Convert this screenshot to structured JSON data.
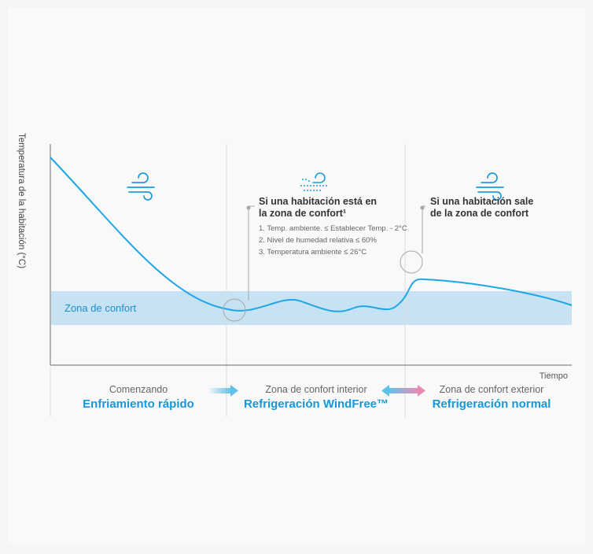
{
  "y_axis_label": "Temperatura de la habitación (°C)",
  "x_axis_label": "Tiempo",
  "comfort_zone_label": "Zona de confort",
  "annotation_1": {
    "title_line1": "Si una habitación está en",
    "title_line2": "la zona de confort¹",
    "conditions": [
      "1. Temp. ambiente. ≤ Establecer Temp. - 2°C",
      "2. Nivel de humedad relativa ≤ 60%",
      "3. Temperatura ambiente ≤ 26°C"
    ]
  },
  "annotation_2": {
    "title_line1": "Si una habitación sale",
    "title_line2": "de la zona de confort"
  },
  "phases": [
    {
      "top": "Comenzando",
      "main": "Enfriamiento rápido",
      "icon": "wind-icon"
    },
    {
      "top": "Zona de confort interior",
      "main": "Refrigeración WindFree™",
      "icon": "windfree-icon"
    },
    {
      "top": "Zona de confort exterior",
      "main": "Refrigeración normal",
      "icon": "wind-icon"
    }
  ],
  "colors": {
    "curve": "#1ea6e6",
    "comfort_zone": "#c6e2f3",
    "phase_text": "#1597d9",
    "arrow_blue": "#5fc1ea",
    "arrow_pink": "#e98ab5"
  }
}
